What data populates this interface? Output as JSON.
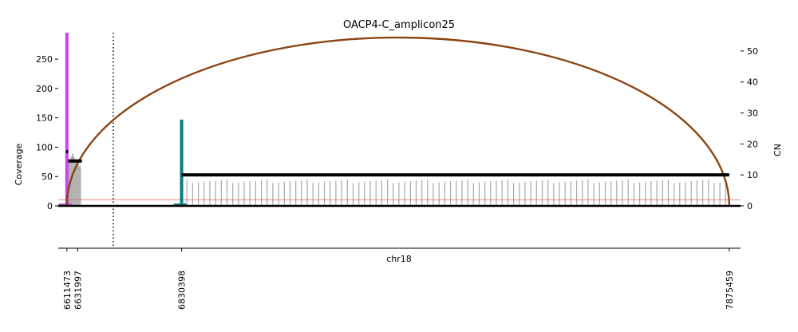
{
  "chart_data": {
    "type": "area",
    "title": "OACP4-C_amplicon25",
    "xlabel": "chr18",
    "ylabel_left": "Coverage",
    "ylabel_right": "CN",
    "x_tick_labels": [
      "6611473",
      "6631997",
      "6830398",
      "7875459"
    ],
    "y_left_ticks": [
      0,
      50,
      100,
      150,
      200,
      250
    ],
    "y_right_ticks": [
      0,
      10,
      20,
      30,
      40,
      50
    ],
    "ylim_left": [
      0,
      295
    ],
    "ylim_right": [
      0,
      55.9
    ],
    "grid": false,
    "coverage_blocks": [
      {
        "x_start": 6610000,
        "x_end": 6638000,
        "peak": 105
      },
      {
        "x_start": 6835000,
        "x_end": 7874000,
        "spike_height": 45
      }
    ],
    "cn_segments": [
      {
        "x_start": 6610000,
        "x_end": 6614000,
        "cn": 17.5
      },
      {
        "x_start": 6614000,
        "x_end": 6640000,
        "cn": 14.5
      },
      {
        "x_start": 6830398,
        "x_end": 7875459,
        "cn": 10
      }
    ],
    "cn_threshold": 2,
    "breakpoints": [
      {
        "x": 6611473,
        "height": 295,
        "color": "#cc44ee"
      },
      {
        "x": 6830398,
        "height": 147,
        "color": "#008080"
      }
    ],
    "discordant_arc": {
      "from": 6611473,
      "to": 7875459,
      "color": "#8b4513"
    },
    "dotted_line_x": 6700000,
    "colors": {
      "coverage": "#b3b3b3",
      "cn": "#000000",
      "threshold": "#e06060",
      "arc": "#8b4513",
      "magenta": "#cc44ee",
      "teal": "#008080"
    }
  }
}
